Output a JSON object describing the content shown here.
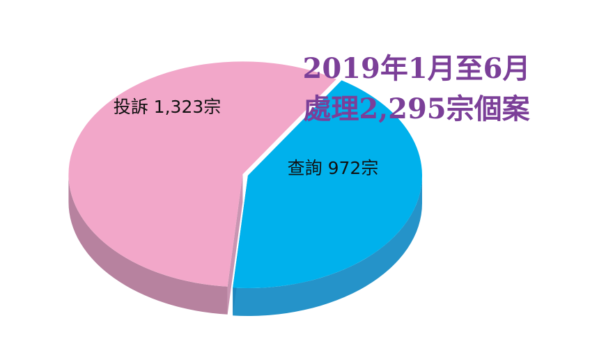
{
  "chart_data": {
    "type": "pie",
    "title_lines": [
      "2019年1月至6月",
      "處理2,295宗個案"
    ],
    "slices": [
      {
        "label": "投訴 1,323宗",
        "value": 1323,
        "color": "#f2a7c9",
        "side_color": "#b7829f"
      },
      {
        "label": "查詢 972宗",
        "value": 972,
        "color": "#00b1ec",
        "side_color": "#2593c9"
      }
    ],
    "total": 2295,
    "legend": "none"
  }
}
